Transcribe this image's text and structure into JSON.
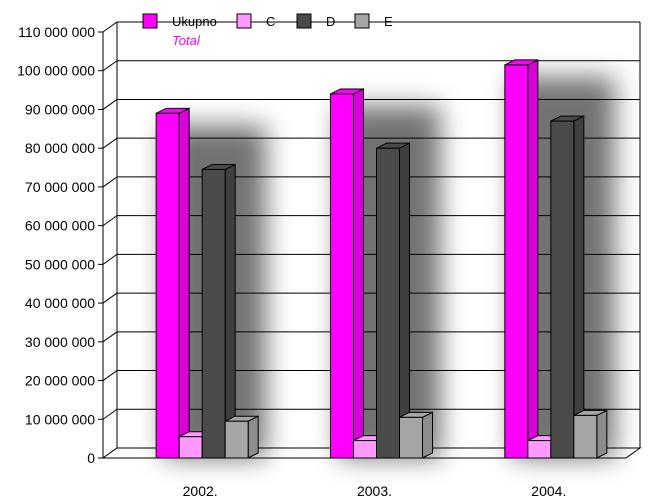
{
  "chart_data": {
    "type": "bar",
    "categories": [
      "2002.",
      "2003.",
      "2004."
    ],
    "series": [
      {
        "name": "Ukupno",
        "subtitle": "Total",
        "color": "#ff00ff",
        "values": [
          89000000,
          94000000,
          101500000
        ]
      },
      {
        "name": "C",
        "color": "#ff99ff",
        "values": [
          5500000,
          4500000,
          4500000
        ]
      },
      {
        "name": "D",
        "color": "#4a4a4a",
        "values": [
          74500000,
          80000000,
          87000000
        ]
      },
      {
        "name": "E",
        "color": "#a6a6a6",
        "values": [
          9500000,
          10500000,
          11000000
        ]
      }
    ],
    "ylim": [
      0,
      110000000
    ],
    "yticks": [
      "0",
      "10 000 000",
      "20 000 000",
      "30 000 000",
      "40 000 000",
      "50 000 000",
      "60 000 000",
      "70 000 000",
      "80 000 000",
      "90 000 000",
      "100 000 000",
      "110 000 000"
    ],
    "grid": true,
    "legend_position": "top",
    "legend_subtitle_color": "#ff00ff",
    "title": "",
    "xlabel": "",
    "ylabel": ""
  }
}
